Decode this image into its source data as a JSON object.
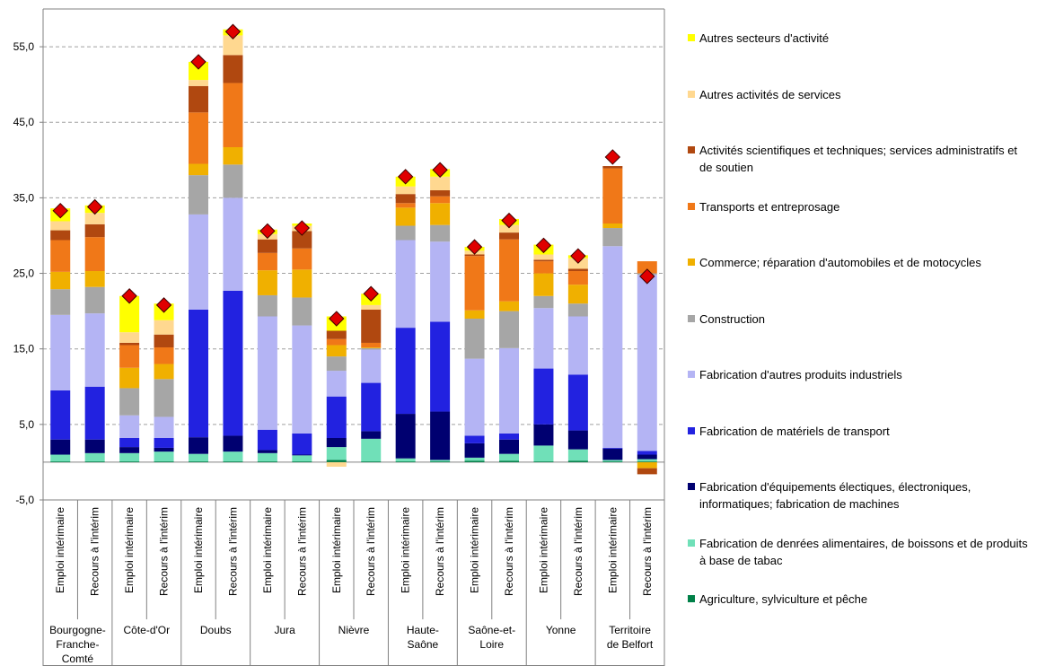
{
  "chart_data": {
    "type": "stacked_bar",
    "ylim": [
      -5,
      60
    ],
    "yticks": [
      {
        "value": -5,
        "label": "-5,0"
      },
      {
        "value": 5,
        "label": "5,0"
      },
      {
        "value": 15,
        "label": "15,0"
      },
      {
        "value": 25,
        "label": "25,0"
      },
      {
        "value": 35,
        "label": "35,0"
      },
      {
        "value": 45,
        "label": "45,0"
      },
      {
        "value": 55,
        "label": "55,0"
      }
    ],
    "grid": true,
    "categories": [
      "Emploi intérimaire",
      "Recours à l'intérim",
      "Emploi intérimaire",
      "Recours à l'intérim",
      "Emploi intérimaire",
      "Recours à l'intérim",
      "Emploi intérimaire",
      "Recours à l'intérim",
      "Emploi intérimaire",
      "Recours à l'intérim",
      "Emploi intérimaire",
      "Recours à l'intérim",
      "Emploi intérimaire",
      "Recours à l'intérim",
      "Emploi intérimaire",
      "Recours à l'intérim",
      "Emploi intérimaire",
      "Recours à l'intérim"
    ],
    "groups": [
      [
        "Bourgogne-",
        "Franche-",
        "Comté"
      ],
      [
        "Côte-d'Or"
      ],
      [
        "Doubs"
      ],
      [
        "Jura"
      ],
      [
        "Nièvre"
      ],
      [
        "Haute-",
        "Saône"
      ],
      [
        "Saône-et-",
        "Loire"
      ],
      [
        "Yonne"
      ],
      [
        "Territoire",
        "de Belfort"
      ]
    ],
    "series": [
      {
        "name": "Agriculture, sylviculture et pêche",
        "color": "#008048",
        "values": [
          0.1,
          0.1,
          0.1,
          0.1,
          0.1,
          0.1,
          0.1,
          0.1,
          0.3,
          0.1,
          0.1,
          0.1,
          0.2,
          0.2,
          0.1,
          0.2,
          0.1,
          0.1
        ]
      },
      {
        "name": "Fabrication de denrées alimentaires, de boissons et de produits à base de tabac",
        "color": "#70e0b8",
        "values": [
          0.9,
          1.1,
          1.1,
          1.3,
          1.0,
          1.3,
          1.1,
          0.8,
          1.7,
          3.0,
          0.4,
          0.2,
          0.4,
          0.9,
          2.1,
          1.5,
          0.2,
          0.3
        ]
      },
      {
        "name": "Fabrication d'équipements électiques, électroniques, informatiques; fabrication de machines",
        "color": "#000070",
        "values": [
          2.0,
          1.8,
          0.8,
          0.5,
          2.2,
          2.1,
          0.4,
          0.1,
          1.2,
          1.0,
          5.9,
          6.4,
          1.9,
          1.9,
          2.8,
          2.5,
          1.5,
          0.6
        ]
      },
      {
        "name": "Fabrication de matériels de transport",
        "color": "#2222e0",
        "values": [
          6.5,
          7.0,
          1.2,
          1.3,
          16.9,
          19.2,
          2.7,
          2.8,
          5.5,
          6.4,
          11.4,
          11.9,
          1.0,
          0.8,
          7.4,
          7.4,
          0.1,
          0.5
        ]
      },
      {
        "name": "Fabrication d'autres produits industriels",
        "color": "#b4b4f4",
        "values": [
          10.0,
          9.7,
          3.0,
          2.8,
          12.6,
          12.3,
          15.0,
          14.3,
          3.4,
          4.4,
          11.6,
          10.6,
          10.2,
          11.3,
          8.0,
          7.7,
          26.7,
          23.3
        ]
      },
      {
        "name": "Construction",
        "color": "#a6a6a6",
        "values": [
          3.4,
          3.5,
          3.6,
          5.0,
          5.2,
          4.4,
          2.8,
          3.7,
          1.9,
          0.2,
          1.9,
          2.2,
          5.3,
          4.9,
          1.6,
          1.7,
          2.4,
          0.2
        ]
      },
      {
        "name": "Commerce; réparation d'automobiles et de motocycles",
        "color": "#f0b000",
        "values": [
          2.3,
          2.1,
          2.7,
          2.0,
          1.5,
          2.3,
          3.3,
          3.7,
          1.5,
          0.1,
          2.4,
          2.9,
          1.1,
          1.3,
          3.0,
          2.5,
          0.6,
          -0.8
        ]
      },
      {
        "name": "Transports et entreprosage",
        "color": "#f07818",
        "values": [
          4.2,
          4.5,
          3.0,
          2.2,
          6.8,
          8.5,
          2.3,
          2.8,
          0.8,
          0.6,
          0.6,
          0.9,
          7.2,
          8.2,
          1.6,
          1.8,
          7.3,
          1.6
        ]
      },
      {
        "name": "Activités scientifiques et techniques; services administratifs et de soutien",
        "color": "#b04810",
        "values": [
          1.3,
          1.7,
          0.3,
          1.7,
          3.5,
          3.7,
          1.8,
          2.3,
          1.1,
          4.4,
          1.2,
          0.8,
          0.2,
          0.9,
          0.2,
          0.3,
          0.3,
          -0.8
        ]
      },
      {
        "name": "Autres activités de services",
        "color": "#ffd890",
        "values": [
          1.2,
          1.5,
          1.4,
          1.9,
          0.8,
          2.6,
          0.7,
          0.7,
          -0.6,
          0.6,
          1.0,
          1.8,
          0.5,
          1.0,
          0.7,
          1.4,
          0,
          0
        ]
      },
      {
        "name": "Autres secteurs d'activité",
        "color": "#ffff00",
        "values": [
          1.7,
          1.0,
          4.8,
          2.2,
          2.4,
          0.8,
          0.6,
          0.3,
          1.9,
          1.5,
          1.3,
          1.0,
          0.5,
          0.8,
          1.3,
          0.4,
          0,
          0
        ]
      }
    ],
    "markers": {
      "color": "#e00000",
      "values": [
        33.3,
        33.8,
        22.0,
        20.8,
        53.0,
        57.0,
        30.6,
        31.0,
        19.0,
        22.3,
        37.8,
        38.7,
        28.5,
        32.0,
        28.7,
        27.3,
        40.4,
        24.6
      ]
    }
  }
}
